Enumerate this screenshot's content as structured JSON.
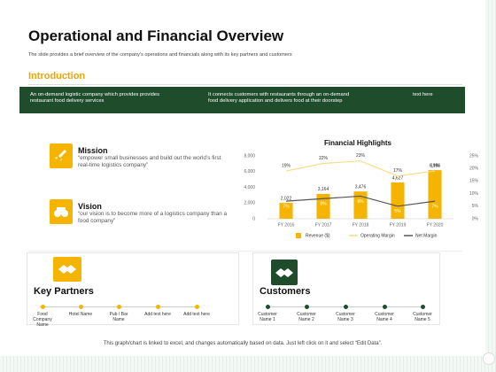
{
  "header": {
    "title": "Operational and Financial Overview",
    "subtitle": "The slide provides a brief overview of the company's operations and financials along with its key partners and customers"
  },
  "introduction": {
    "heading": "Introduction",
    "columns": [
      "An on-demand logistic company which provides provides restaurant food delivery services",
      "It connects customers with restaurants through an on-demand food delivery application and delivers food at their doorstep",
      "text here"
    ]
  },
  "mission": {
    "heading": "Mission",
    "text": "“empower small businesses and build out the world’s first real-time logistics company”"
  },
  "vision": {
    "heading": "Vision",
    "text": "“our vision is to become more of a logistics company than a food company”"
  },
  "key_partners": {
    "heading": "Key Partners",
    "items": [
      "Food Company Name",
      "Hotel Name",
      "Pub / Bar Name",
      "Add text here",
      "Add text here"
    ]
  },
  "customers": {
    "heading": "Customers",
    "items": [
      "Customer Name 1",
      "Customer Name 2",
      "Customer Name 3",
      "Customer Name 4",
      "Customer Name 5"
    ]
  },
  "footer": "This graph/chart is linked to excel, and changes automatically based on data. Just left click on it and select “Edit Data”.",
  "chart_data": {
    "type": "bar",
    "title": "Financial Highlights",
    "categories": [
      "FY 2016",
      "FY 2017",
      "FY 2018",
      "FY 2019",
      "FY 2020"
    ],
    "series": [
      {
        "name": "Revenue ($)",
        "type": "bar",
        "color": "#f5b400",
        "values": [
          2022,
          3164,
          3476,
          4627,
          6186
        ],
        "value_labels": [
          "2,022",
          "3,164",
          "3,476",
          "4,627",
          "6,186"
        ]
      },
      {
        "name": "Operating Margin",
        "type": "line",
        "axis": "y2",
        "color": "#f8dc8c",
        "values": [
          19,
          22,
          23,
          17,
          19
        ],
        "value_labels": [
          "19%",
          "22%",
          "23%",
          "17%",
          "19%"
        ]
      },
      {
        "name": "Net Margin",
        "type": "line",
        "axis": "y2",
        "color": "#555555",
        "values": [
          7,
          8,
          9,
          5,
          7
        ],
        "value_labels": [
          "7%",
          "8%",
          "9%",
          "5%",
          "7%"
        ]
      }
    ],
    "ylim": [
      0,
      8000
    ],
    "yticks": [
      {
        "value": 0,
        "label": "0"
      },
      {
        "value": 2000,
        "label": "2,000"
      },
      {
        "value": 4000,
        "label": "4,000"
      },
      {
        "value": 6000,
        "label": "6,000"
      },
      {
        "value": 8000,
        "label": "8,000"
      }
    ],
    "y2lim": [
      0,
      25
    ],
    "y2ticks": [
      {
        "value": 0,
        "label": "0%"
      },
      {
        "value": 5,
        "label": "5%"
      },
      {
        "value": 10,
        "label": "10%"
      },
      {
        "value": 15,
        "label": "15%"
      },
      {
        "value": 20,
        "label": "20%"
      },
      {
        "value": 25,
        "label": "25%"
      }
    ],
    "grid": false,
    "legend": "bottom"
  }
}
